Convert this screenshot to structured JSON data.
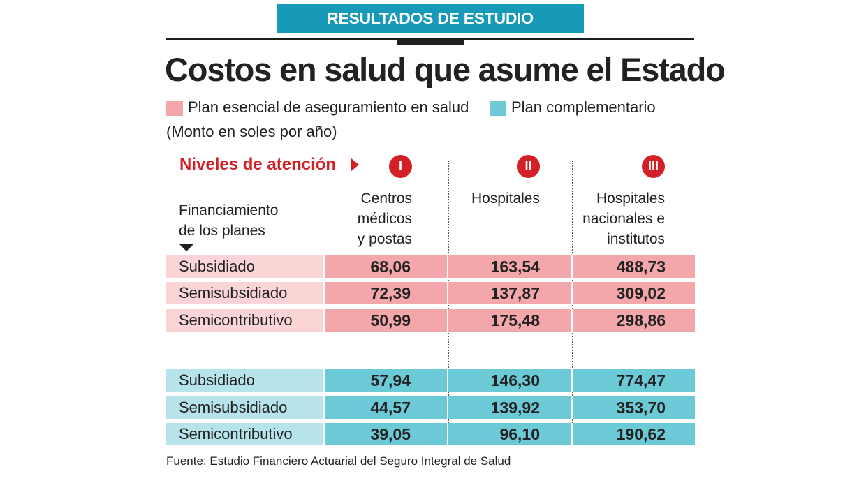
{
  "header": {
    "banner": "RESULTADOS DE ESTUDIO",
    "title": "Costos en salud que asume el Estado"
  },
  "legend": [
    {
      "label": "Plan esencial de aseguramiento en salud",
      "color": "#f4a7ab"
    },
    {
      "label": "Plan complementario",
      "color": "#6ccad7"
    }
  ],
  "subtitle": "(Monto en soles por año)",
  "levels": {
    "label": "Niveles de atención",
    "badges": [
      "I",
      "II",
      "III"
    ]
  },
  "financing_header": [
    "Financiamiento",
    "de los planes"
  ],
  "columns": [
    {
      "lines": [
        "Centros",
        "médicos",
        "y postas"
      ]
    },
    {
      "lines": [
        "Hospitales"
      ]
    },
    {
      "lines": [
        "Hospitales",
        "nacionales e",
        "institutos"
      ]
    }
  ],
  "colors": {
    "brand": "#1799b8",
    "accent_red": "#d32027",
    "pink_label": "#fbd5d6",
    "pink_cell": "#f4a7ab",
    "teal_label": "#b7e3ea",
    "teal_cell": "#6ccad7"
  },
  "chart_data": {
    "type": "table",
    "title": "Costos en salud que asume el Estado",
    "unit": "(Monto en soles por año)",
    "columns": [
      "Centros médicos y postas",
      "Hospitales",
      "Hospitales nacionales e institutos"
    ],
    "groups": [
      {
        "name": "Plan esencial de aseguramiento en salud",
        "rows": [
          {
            "label": "Subsidiado",
            "values": [
              "68,06",
              "163,54",
              "488,73"
            ]
          },
          {
            "label": "Semisubsidiado",
            "values": [
              "72,39",
              "137,87",
              "309,02"
            ]
          },
          {
            "label": "Semicontributivo",
            "values": [
              "50,99",
              "175,48",
              "298,86"
            ]
          }
        ]
      },
      {
        "name": "Plan complementario",
        "rows": [
          {
            "label": "Subsidiado",
            "values": [
              "57,94",
              "146,30",
              "774,47"
            ]
          },
          {
            "label": "Semisubsidiado",
            "values": [
              "44,57",
              "139,92",
              "353,70"
            ]
          },
          {
            "label": "Semicontributivo",
            "values": [
              "39,05",
              "96,10",
              "190,62"
            ]
          }
        ]
      }
    ]
  },
  "source": "Fuente: Estudio Financiero Actuarial del Seguro Integral de Salud"
}
